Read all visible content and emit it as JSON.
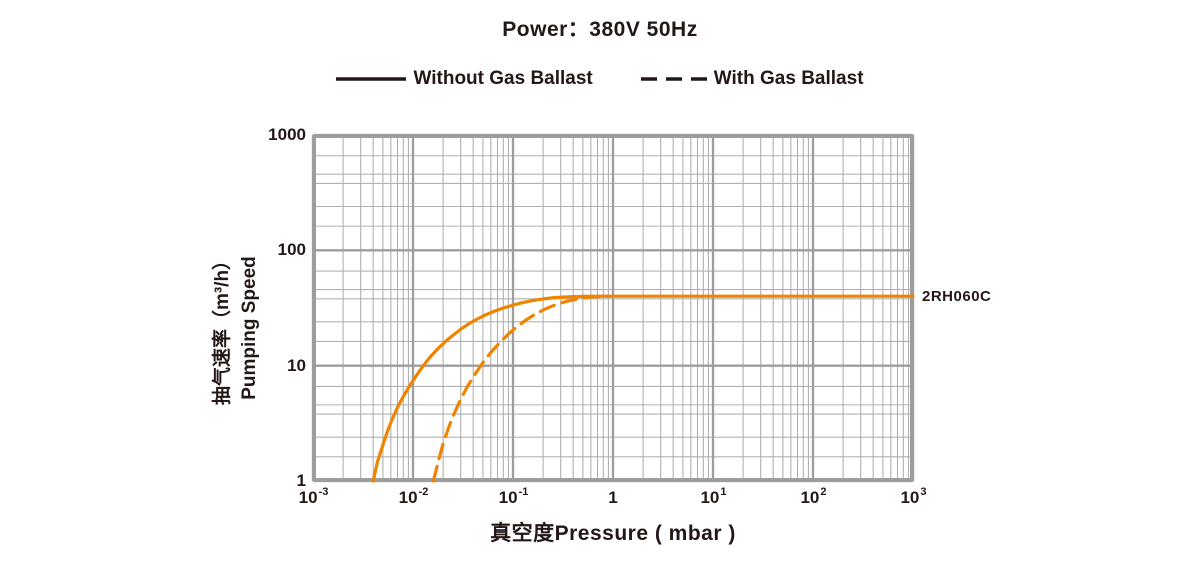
{
  "title": "Power：380V 50Hz",
  "legend": {
    "items": [
      {
        "label": "Without Gas Ballast",
        "style": "solid"
      },
      {
        "label": "With Gas Ballast",
        "style": "dashed"
      }
    ]
  },
  "y_axis_title_line1": "抽气速率（m³/h）",
  "y_axis_title_line2": "Pumping Speed",
  "x_axis_title": "真空度Pressure ( mbar )",
  "curve_label": "2RH060C",
  "colors": {
    "curve": "#F08300",
    "grid_major": "#9C9D9D",
    "grid_minor": "#AFB0B0",
    "border": "#9C9D9D",
    "text": "#231815"
  },
  "chart_data": {
    "type": "line",
    "title": "Power：380V 50Hz",
    "xlabel": "真空度Pressure ( mbar )",
    "ylabel": "抽气速率（m³/h）Pumping Speed",
    "x_scale": "log",
    "y_scale": "log",
    "xlim": [
      0.001,
      1000
    ],
    "ylim": [
      1,
      1000
    ],
    "grid": true,
    "legend_position": "top",
    "x_ticks": [
      {
        "base": "10",
        "exp": "-3"
      },
      {
        "base": "10",
        "exp": "-2"
      },
      {
        "base": "10",
        "exp": "-1"
      },
      {
        "base": "1",
        "exp": ""
      },
      {
        "base": "10",
        "exp": "1"
      },
      {
        "base": "10",
        "exp": "2"
      },
      {
        "base": "10",
        "exp": "3"
      }
    ],
    "y_ticks": [
      "1000",
      "100",
      "10",
      "1"
    ],
    "plateau_speed_m3h": 40,
    "series": [
      {
        "name": "Without Gas Ballast",
        "style": "solid",
        "annotation": "2RH060C",
        "points": [
          [
            0.004,
            1.0
          ],
          [
            0.0044,
            1.45
          ],
          [
            0.005,
            2.05
          ],
          [
            0.0056,
            2.75
          ],
          [
            0.0063,
            3.55
          ],
          [
            0.0071,
            4.45
          ],
          [
            0.008,
            5.4
          ],
          [
            0.009,
            6.4
          ],
          [
            0.01,
            7.4
          ],
          [
            0.0115,
            8.9
          ],
          [
            0.013,
            10.3
          ],
          [
            0.015,
            12.0
          ],
          [
            0.018,
            14.2
          ],
          [
            0.021,
            16.1
          ],
          [
            0.025,
            18.3
          ],
          [
            0.03,
            20.7
          ],
          [
            0.036,
            23.0
          ],
          [
            0.044,
            25.4
          ],
          [
            0.054,
            27.7
          ],
          [
            0.066,
            29.8
          ],
          [
            0.08,
            31.6
          ],
          [
            0.1,
            33.5
          ],
          [
            0.125,
            35.2
          ],
          [
            0.16,
            36.8
          ],
          [
            0.2,
            37.9
          ],
          [
            0.26,
            38.9
          ],
          [
            0.35,
            39.5
          ],
          [
            0.5,
            39.9
          ],
          [
            0.7,
            40
          ],
          [
            1,
            40
          ],
          [
            10,
            40
          ],
          [
            100,
            40
          ],
          [
            1000,
            40
          ]
        ]
      },
      {
        "name": "With Gas Ballast",
        "style": "dashed",
        "points": [
          [
            0.016,
            1.0
          ],
          [
            0.018,
            1.5
          ],
          [
            0.02,
            2.1
          ],
          [
            0.023,
            3.0
          ],
          [
            0.026,
            3.9
          ],
          [
            0.03,
            5.1
          ],
          [
            0.035,
            6.6
          ],
          [
            0.042,
            8.5
          ],
          [
            0.05,
            10.6
          ],
          [
            0.06,
            13.0
          ],
          [
            0.073,
            15.7
          ],
          [
            0.09,
            18.8
          ],
          [
            0.11,
            21.8
          ],
          [
            0.135,
            24.9
          ],
          [
            0.17,
            28.2
          ],
          [
            0.21,
            31.0
          ],
          [
            0.27,
            33.9
          ],
          [
            0.35,
            36.2
          ],
          [
            0.46,
            38.2
          ],
          [
            0.6,
            39.4
          ],
          [
            0.75,
            39.9
          ],
          [
            0.9,
            40
          ]
        ]
      }
    ]
  }
}
